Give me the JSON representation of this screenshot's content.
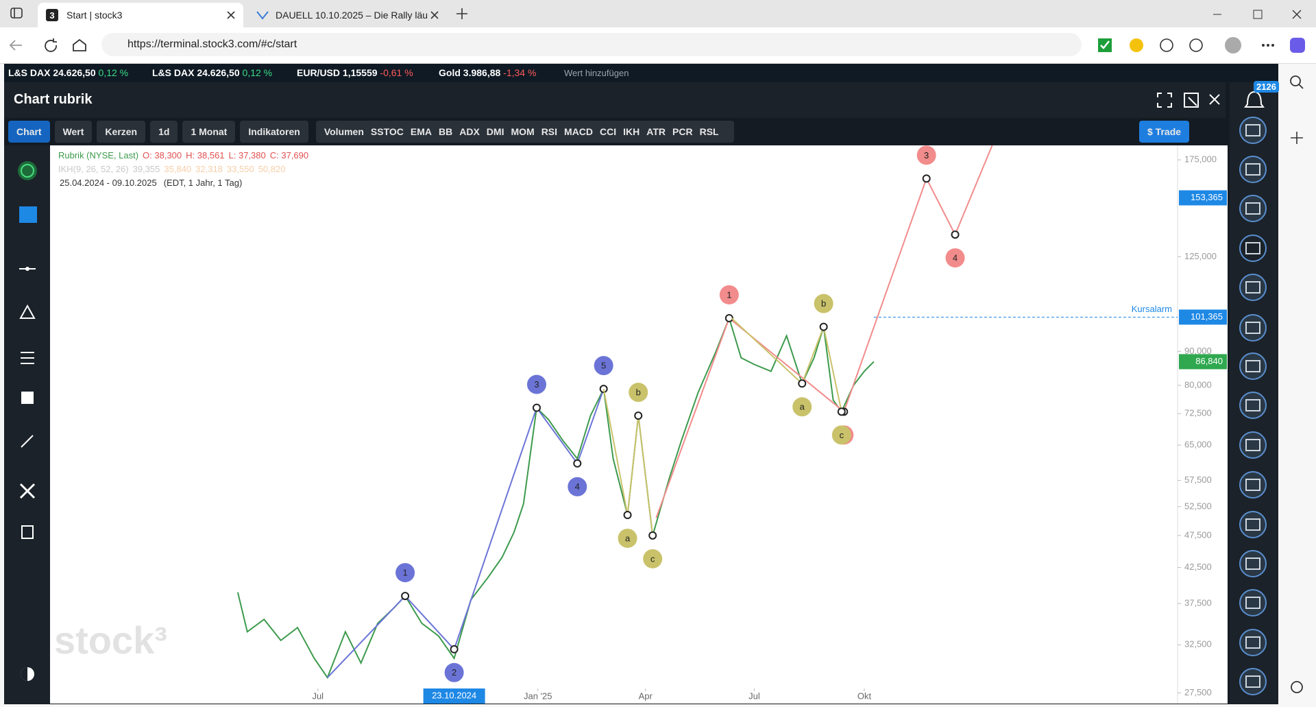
{
  "browser": {
    "tabs": [
      "Start | stock3",
      "DAUELL 10.10.2025 – Die Rally läu"
    ],
    "url": "https://terminal.stock3.com/#c/start"
  },
  "ticker": {
    "items": [
      {
        "name": "L&S DAX",
        "price": "24.626,50",
        "change": "0,12 %",
        "color": "#3ddc84"
      },
      {
        "name": "L&S DAX",
        "price": "24.626,50",
        "change": "0,12 %",
        "color": "#3ddc84"
      },
      {
        "name": "EUR/USD",
        "price": "1,15559",
        "change": "-0,61 %",
        "color": "#ff5a5a"
      },
      {
        "name": "Gold",
        "price": "3.986,88",
        "change": "-1,34 %",
        "color": "#ff5a5a"
      }
    ],
    "add_value": "Wert hinzufügen"
  },
  "header": {
    "title": "Chart rubrik"
  },
  "toolbar": {
    "buttons": [
      "Chart",
      "Wert",
      "Kerzen",
      "1d",
      "1 Monat",
      "Indikatoren"
    ],
    "indicators": [
      "Volumen",
      "SSTOC",
      "EMA",
      "BB",
      "ADX",
      "DMI",
      "MOM",
      "RSI",
      "MACD",
      "CCI",
      "IKH",
      "ATR",
      "PCR",
      "RSL"
    ],
    "trade": "$ Trade"
  },
  "notifications": {
    "count": 2126
  },
  "chart_data": {
    "type": "line",
    "watermark": "stock³",
    "legend": {
      "ohlc": [
        "O: 38,300",
        "H: 38,561",
        "L: 37,380",
        "C: 37,690"
      ],
      "indicator": "IKH(9, 26, 52, 26)",
      "indicator_values": [
        "39,355",
        "35,840",
        "32,318",
        "33,550",
        "50,820"
      ],
      "range": "25.04.2024 - 09.10.2025",
      "range_note": "(EDT, 1 Jahr, 1 Tag)"
    },
    "x": [
      "2024-04-25",
      "2024-05-03",
      "2024-05-17",
      "2024-05-31",
      "2024-06-14",
      "2024-06-28",
      "2024-07-09",
      "2024-07-24",
      "2024-08-06",
      "2024-08-20",
      "2024-09-03",
      "2024-09-12",
      "2024-09-26",
      "2024-10-10",
      "2024-10-23",
      "2024-11-06",
      "2024-11-20",
      "2024-12-02",
      "2024-12-12",
      "2024-12-20",
      "2024-12-31",
      "2025-01-10",
      "2025-01-22",
      "2025-02-03",
      "2025-02-14",
      "2025-02-25",
      "2025-03-05",
      "2025-03-17",
      "2025-03-26",
      "2025-04-07",
      "2025-04-21",
      "2025-05-01",
      "2025-05-15",
      "2025-05-30",
      "2025-06-10",
      "2025-06-20",
      "2025-07-01",
      "2025-07-15",
      "2025-07-28",
      "2025-08-10",
      "2025-08-20",
      "2025-08-28",
      "2025-09-05",
      "2025-09-12",
      "2025-09-22",
      "2025-10-01",
      "2025-10-09"
    ],
    "series": [
      {
        "name": "Rubrik (NYSE, Last)",
        "color": "#3c9a4c",
        "values": [
          39000,
          34000,
          35500,
          33000,
          34500,
          31000,
          29000,
          34000,
          30500,
          35000,
          37000,
          38500,
          35000,
          33500,
          31000,
          38000,
          41000,
          44000,
          48000,
          53000,
          74000,
          71000,
          66000,
          62000,
          72000,
          79000,
          62000,
          51000,
          72000,
          47500,
          58000,
          66000,
          78000,
          90000,
          101000,
          88000,
          86000,
          84000,
          95000,
          80500,
          88000,
          98000,
          76000,
          73000,
          80000,
          84000,
          86840
        ]
      }
    ],
    "y_scale": "log",
    "ylim": [
      26500,
      184000
    ],
    "yticks": [
      {
        "value": 175000,
        "label": "175,000"
      },
      {
        "value": 125000,
        "label": "125,000"
      },
      {
        "value": 90000,
        "label": "90,000"
      },
      {
        "value": 80000,
        "label": "80,000"
      },
      {
        "value": 72500,
        "label": "72,500"
      },
      {
        "value": 65000,
        "label": "65,000"
      },
      {
        "value": 57500,
        "label": "57,500"
      },
      {
        "value": 52500,
        "label": "52,500"
      },
      {
        "value": 47500,
        "label": "47,500"
      },
      {
        "value": 42500,
        "label": "42,500"
      },
      {
        "value": 37500,
        "label": "37,500"
      },
      {
        "value": 32500,
        "label": "32,500"
      },
      {
        "value": 27500,
        "label": "27,500"
      }
    ],
    "xlim": [
      "2023-11-20",
      "2026-06-20"
    ],
    "xticks": [
      {
        "value": "2024-07-01",
        "label": "Jul"
      },
      {
        "value": "2025-01-01",
        "label": "Jan '25"
      },
      {
        "value": "2025-04-01",
        "label": "Apr"
      },
      {
        "value": "2025-07-01",
        "label": "Jul"
      },
      {
        "value": "2025-10-01",
        "label": "Okt"
      }
    ],
    "crosshair": {
      "value": "2024-10-23",
      "label": "23.10.2024"
    },
    "price_tags": [
      {
        "value": 153365,
        "label": "153,365",
        "color": "#1e88e5"
      },
      {
        "value": 101365,
        "label": "101,365",
        "color": "#1e88e5",
        "note": "Kursalarm"
      },
      {
        "value": 86840,
        "label": "86,840",
        "color": "#2fa84f"
      }
    ],
    "waves": [
      {
        "color": "#6b74d6",
        "x": [
          "2024-07-09",
          "2024-09-12",
          "2024-10-23",
          "2024-12-31",
          "2025-02-03",
          "2025-02-25"
        ],
        "values": [
          29000,
          38500,
          32000,
          74000,
          61000,
          79000
        ],
        "labels": [
          "1",
          "2",
          "3",
          "4",
          "5"
        ]
      },
      {
        "color": "#c9c26a",
        "x": [
          "2025-02-25",
          "2025-03-17",
          "2025-03-26",
          "2025-04-07"
        ],
        "values": [
          79000,
          51000,
          72000,
          47500
        ],
        "labels": [
          "a",
          "b",
          "c"
        ]
      },
      {
        "color": "#f28b8b",
        "x": [
          "2025-04-10",
          "2025-06-10",
          "2025-09-14",
          "2025-11-22",
          "2025-12-16",
          "2026-01-16"
        ],
        "values": [
          50500,
          101000,
          73000,
          164000,
          135000,
          184000
        ],
        "labels": [
          "1",
          "2",
          "3",
          "4"
        ]
      },
      {
        "color": "#c9c26a",
        "x": [
          "2025-06-12",
          "2025-08-10",
          "2025-08-28",
          "2025-09-12"
        ],
        "values": [
          101000,
          80500,
          98000,
          73000
        ],
        "labels": [
          "a",
          "b",
          "c"
        ]
      }
    ]
  }
}
